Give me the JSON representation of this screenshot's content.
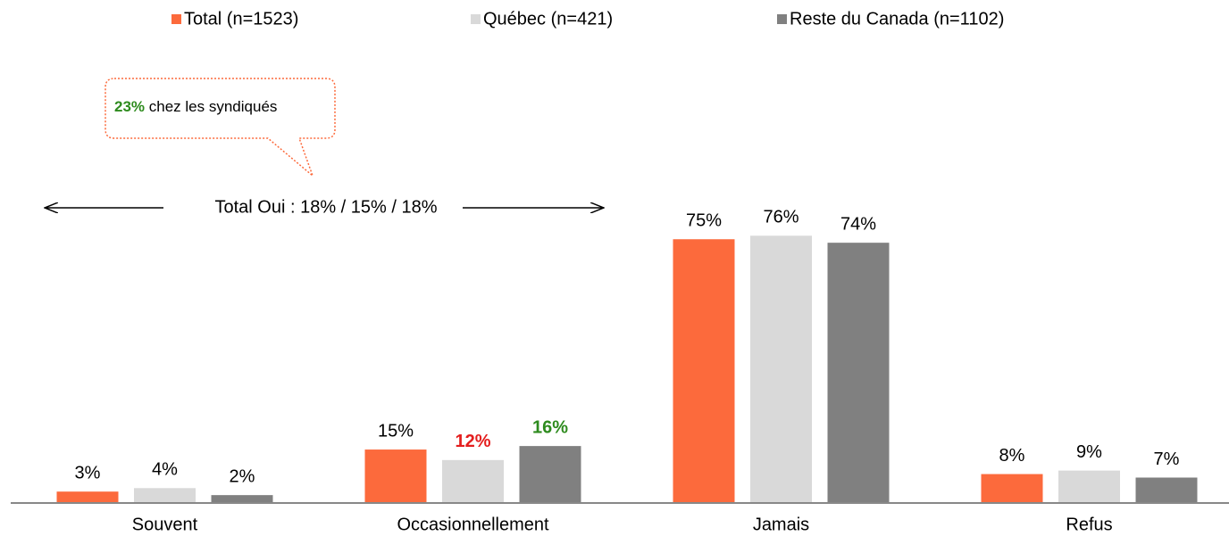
{
  "chart_data": {
    "type": "bar",
    "categories": [
      "Souvent",
      "Occasionnellement",
      "Jamais",
      "Refus"
    ],
    "series": [
      {
        "name": "Total (n=1523)",
        "color": "#fc6a3c",
        "values": [
          3,
          15,
          75,
          8
        ],
        "value_labels": [
          "3%",
          "15%",
          "75%",
          "8%"
        ],
        "label_colors": [
          null,
          null,
          null,
          null
        ]
      },
      {
        "name": "Québec (n=421)",
        "color": "#d9d9d9",
        "values": [
          4,
          12,
          76,
          9
        ],
        "value_labels": [
          "4%",
          "12%",
          "76%",
          "9%"
        ],
        "label_colors": [
          null,
          "#e41e1e",
          null,
          null
        ]
      },
      {
        "name": "Reste du Canada (n=1102)",
        "color": "#808080",
        "values": [
          2,
          16,
          74,
          7
        ],
        "value_labels": [
          "2%",
          "16%",
          "74%",
          "7%"
        ],
        "label_colors": [
          null,
          "#2e8b1e",
          null,
          null
        ]
      }
    ],
    "ylim": [
      0,
      100
    ],
    "annotations": {
      "callout": {
        "highlight": "23%",
        "text": "chez les syndiqués",
        "highlight_color": "#2e8b1e"
      },
      "total_oui": "Total Oui : 18% / 15% / 18%"
    }
  }
}
